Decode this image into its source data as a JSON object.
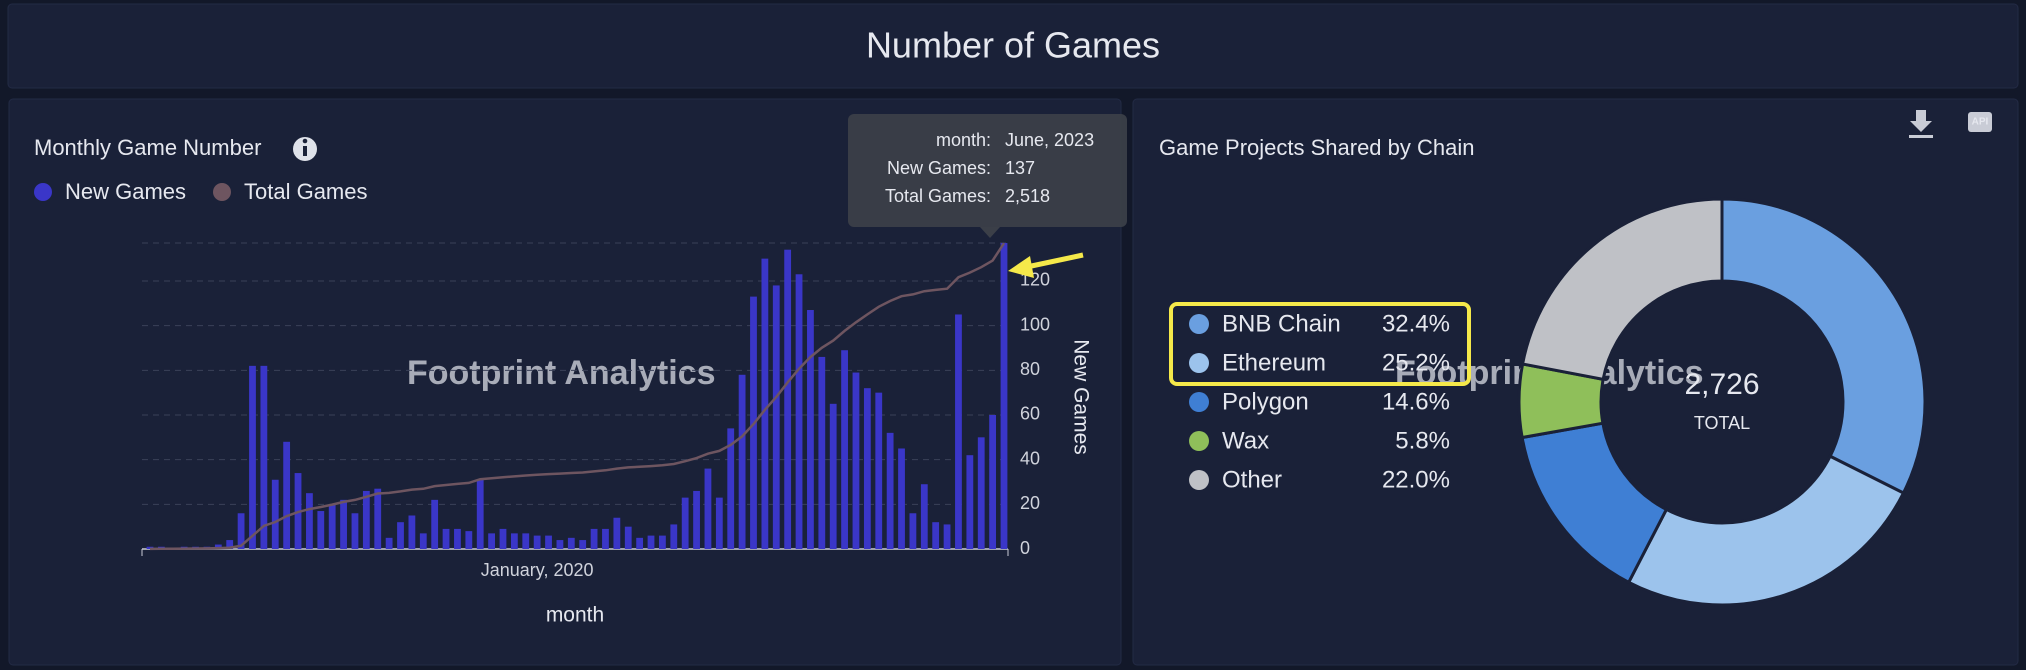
{
  "title": "Number of Games",
  "watermark": "Footprint Analytics",
  "chart_data": [
    {
      "type": "bar",
      "title": "Monthly Game Number",
      "xlabel": "month",
      "ylabel": "New Games",
      "categories": [
        null,
        null,
        null,
        null,
        null,
        null,
        null,
        null,
        null,
        null,
        null,
        null,
        null,
        null,
        null,
        null,
        null,
        null,
        null,
        null,
        null,
        null,
        null,
        null,
        null,
        null,
        null,
        null,
        null,
        null,
        null,
        null,
        null,
        null,
        "January, 2020",
        null,
        null,
        null,
        null,
        null,
        null,
        null,
        null,
        null,
        null,
        null,
        null,
        null,
        null,
        null,
        null,
        null,
        null,
        null,
        null,
        null,
        null,
        null,
        null,
        null,
        null,
        null,
        null,
        null,
        null,
        null,
        null,
        null,
        null,
        null,
        null,
        null,
        null,
        null,
        null,
        null
      ],
      "series": [
        {
          "name": "New Games",
          "color": "#3a36c8",
          "values": [
            1,
            1,
            0,
            1,
            1,
            1,
            2,
            4,
            16,
            82,
            82,
            31,
            48,
            34,
            25,
            17,
            20,
            22,
            16,
            26,
            27,
            5,
            12,
            15,
            7,
            22,
            9,
            9,
            8,
            31,
            7,
            9,
            7,
            7,
            6,
            6,
            4,
            5,
            4,
            9,
            9,
            14,
            10,
            5,
            6,
            6,
            11,
            23,
            26,
            36,
            23,
            54,
            78,
            113,
            130,
            118,
            134,
            123,
            107,
            86,
            65,
            89,
            79,
            72,
            70,
            52,
            45,
            16,
            29,
            12,
            11,
            105,
            42,
            50,
            60,
            137
          ]
        },
        {
          "name": "Total Games",
          "color": "#6e5560",
          "axis": "y2",
          "values": [
            1,
            2,
            2,
            3,
            4,
            5,
            7,
            11,
            27,
            109,
            191,
            222,
            270,
            304,
            329,
            346,
            366,
            388,
            404,
            430,
            457,
            462,
            474,
            489,
            496,
            518,
            527,
            536,
            544,
            575,
            582,
            591,
            598,
            605,
            611,
            617,
            621,
            626,
            630,
            639,
            648,
            662,
            672,
            677,
            683,
            689,
            700,
            723,
            749,
            785,
            808,
            857,
            927,
            1029,
            1146,
            1252,
            1373,
            1484,
            1580,
            1657,
            1716,
            1796,
            1867,
            1932,
            1995,
            2042,
            2082,
            2097,
            2123,
            2134,
            2144,
            2238,
            2276,
            2321,
            2375,
            2518
          ]
        }
      ],
      "ylim": [
        0,
        137
      ],
      "yticks": [
        0,
        20,
        40,
        60,
        80,
        100,
        120
      ],
      "y2lim": [
        0,
        2520
      ],
      "grid": true,
      "tooltip": {
        "rows": [
          {
            "key": "month:",
            "value": "June, 2023"
          },
          {
            "key": "New Games:",
            "value": "137"
          },
          {
            "key": "Total Games:",
            "value": "2,518"
          }
        ]
      }
    },
    {
      "type": "pie",
      "title": "Game Projects Shared by Chain",
      "categories": [
        "BNB Chain",
        "Ethereum",
        "Polygon",
        "Wax",
        "Other"
      ],
      "values": [
        32.4,
        25.2,
        14.6,
        5.8,
        22.0
      ],
      "value_labels": [
        "32.4%",
        "25.2%",
        "14.6%",
        "5.8%",
        "22.0%"
      ],
      "colors": [
        "#6a9fe0",
        "#9cc3ec",
        "#3f7fd4",
        "#8fbf5a",
        "#bfc1c6"
      ],
      "total": "2,726",
      "total_caption": "TOTAL"
    }
  ]
}
